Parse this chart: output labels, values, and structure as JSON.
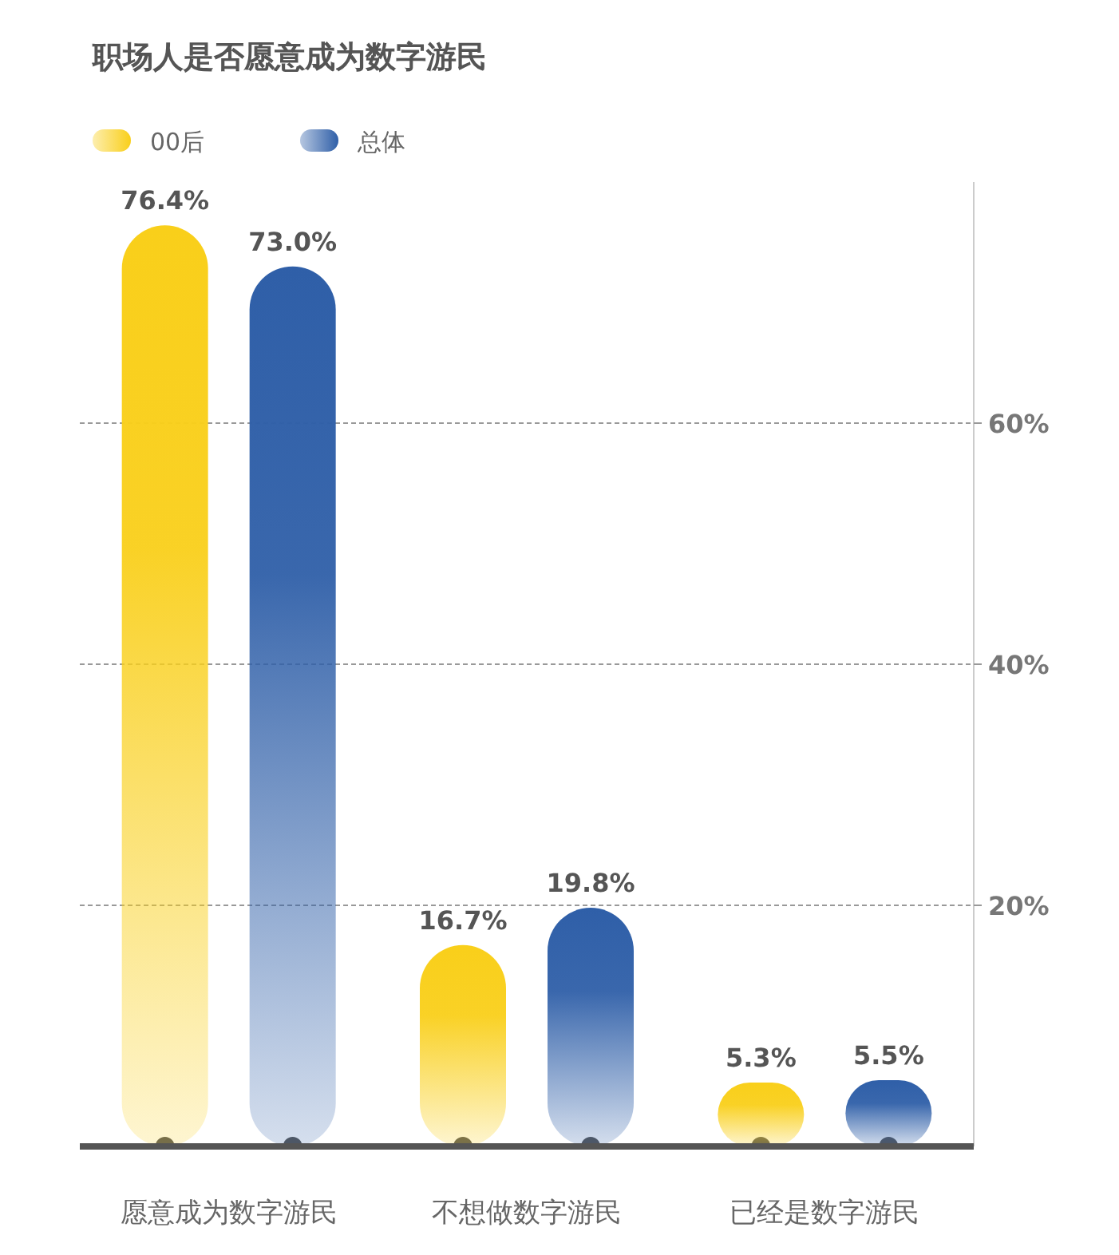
{
  "chart_data": {
    "type": "bar",
    "title": "职场人是否愿意成为数字游民",
    "categories": [
      "愿意成为数字游民",
      "不想做数字游民",
      "已经是数字游民"
    ],
    "series": [
      {
        "name": "00后",
        "color": "#f9cf1a",
        "values": [
          76.4,
          16.7,
          5.3
        ]
      },
      {
        "name": "总体",
        "color": "#2f5fa8",
        "values": [
          73.0,
          19.8,
          5.5
        ]
      }
    ],
    "ylim": [
      0,
      80
    ],
    "yticks": [
      {
        "value": 20,
        "label": "20%"
      },
      {
        "value": 40,
        "label": "40%"
      },
      {
        "value": 60,
        "label": "60%"
      }
    ],
    "grid": "y",
    "legend": "top left",
    "value_labels": [
      [
        "76.4%",
        "16.7%",
        "5.3%"
      ],
      [
        "73.0%",
        "19.8%",
        "5.5%"
      ]
    ]
  }
}
